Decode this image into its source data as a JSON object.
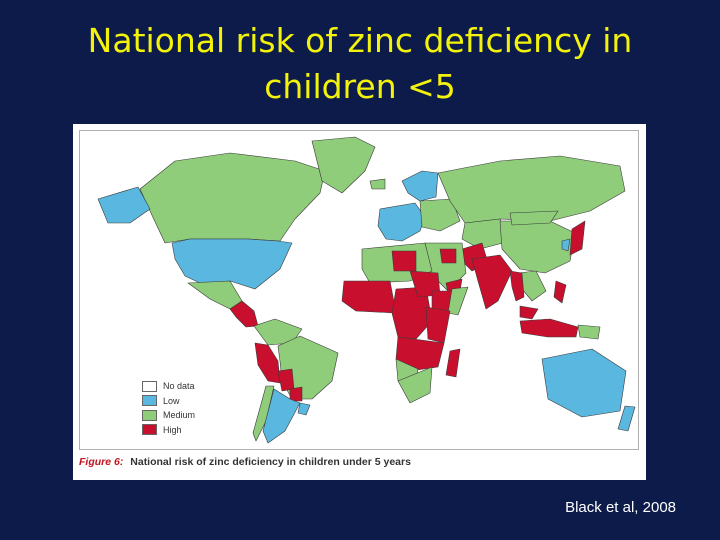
{
  "slide": {
    "title_line1": "National risk of zinc deficiency in",
    "title_line2": "children <5",
    "citation": "Black et al, 2008"
  },
  "figure": {
    "caption_label": "Figure 6:",
    "caption_text": "National risk of zinc deficiency in children under 5 years"
  },
  "legend": {
    "items": [
      {
        "label": "No data",
        "color": "#ffffff"
      },
      {
        "label": "Low",
        "color": "#5ab7df"
      },
      {
        "label": "Medium",
        "color": "#8fcd7a"
      },
      {
        "label": "High",
        "color": "#c8102e"
      }
    ]
  },
  "colors": {
    "background": "#0d1b4a",
    "title": "#f2f20a",
    "border": "#3a3a3a"
  },
  "map_regions": [
    {
      "name": "Canada",
      "risk": "Medium"
    },
    {
      "name": "Greenland",
      "risk": "Medium"
    },
    {
      "name": "Alaska (USA)",
      "risk": "Low"
    },
    {
      "name": "USA",
      "risk": "Low"
    },
    {
      "name": "Mexico",
      "risk": "Medium"
    },
    {
      "name": "Central America",
      "risk": "High"
    },
    {
      "name": "Colombia / Venezuela",
      "risk": "Medium"
    },
    {
      "name": "Peru / Ecuador",
      "risk": "High"
    },
    {
      "name": "Brazil",
      "risk": "Medium"
    },
    {
      "name": "Bolivia",
      "risk": "High"
    },
    {
      "name": "Paraguay",
      "risk": "High"
    },
    {
      "name": "Chile",
      "risk": "Medium"
    },
    {
      "name": "Argentina",
      "risk": "Low"
    },
    {
      "name": "Uruguay",
      "risk": "Low"
    },
    {
      "name": "Iceland",
      "risk": "Medium"
    },
    {
      "name": "Western Europe",
      "risk": "Low"
    },
    {
      "name": "Eastern Europe",
      "risk": "Medium"
    },
    {
      "name": "Scandinavia",
      "risk": "Low"
    },
    {
      "name": "Russia",
      "risk": "Medium"
    },
    {
      "name": "Central Asia",
      "risk": "Medium"
    },
    {
      "name": "China",
      "risk": "Medium"
    },
    {
      "name": "Mongolia",
      "risk": "Medium"
    },
    {
      "name": "Japan",
      "risk": "High"
    },
    {
      "name": "Korea",
      "risk": "Low"
    },
    {
      "name": "Pakistan / Afghanistan",
      "risk": "High"
    },
    {
      "name": "India",
      "risk": "High"
    },
    {
      "name": "Southeast Asia",
      "risk": "Medium"
    },
    {
      "name": "Myanmar / Thailand",
      "risk": "High"
    },
    {
      "name": "Malaysia",
      "risk": "High"
    },
    {
      "name": "Indonesia",
      "risk": "High"
    },
    {
      "name": "Papua New Guinea",
      "risk": "Medium"
    },
    {
      "name": "Philippines",
      "risk": "High"
    },
    {
      "name": "Middle East",
      "risk": "Medium"
    },
    {
      "name": "Iraq",
      "risk": "High"
    },
    {
      "name": "Yemen",
      "risk": "High"
    },
    {
      "name": "North Africa",
      "risk": "Medium"
    },
    {
      "name": "Libya",
      "risk": "High"
    },
    {
      "name": "West Africa",
      "risk": "High"
    },
    {
      "name": "Central Africa",
      "risk": "High"
    },
    {
      "name": "Sudan / Chad",
      "risk": "High"
    },
    {
      "name": "Ethiopia",
      "risk": "High"
    },
    {
      "name": "Somalia",
      "risk": "Medium"
    },
    {
      "name": "East Africa",
      "risk": "High"
    },
    {
      "name": "Angola / Zambia / Mozambique",
      "risk": "High"
    },
    {
      "name": "Namibia / Botswana",
      "risk": "Medium"
    },
    {
      "name": "South Africa",
      "risk": "Medium"
    },
    {
      "name": "Madagascar",
      "risk": "High"
    },
    {
      "name": "Australia",
      "risk": "Low"
    },
    {
      "name": "New Zealand",
      "risk": "Low"
    }
  ]
}
